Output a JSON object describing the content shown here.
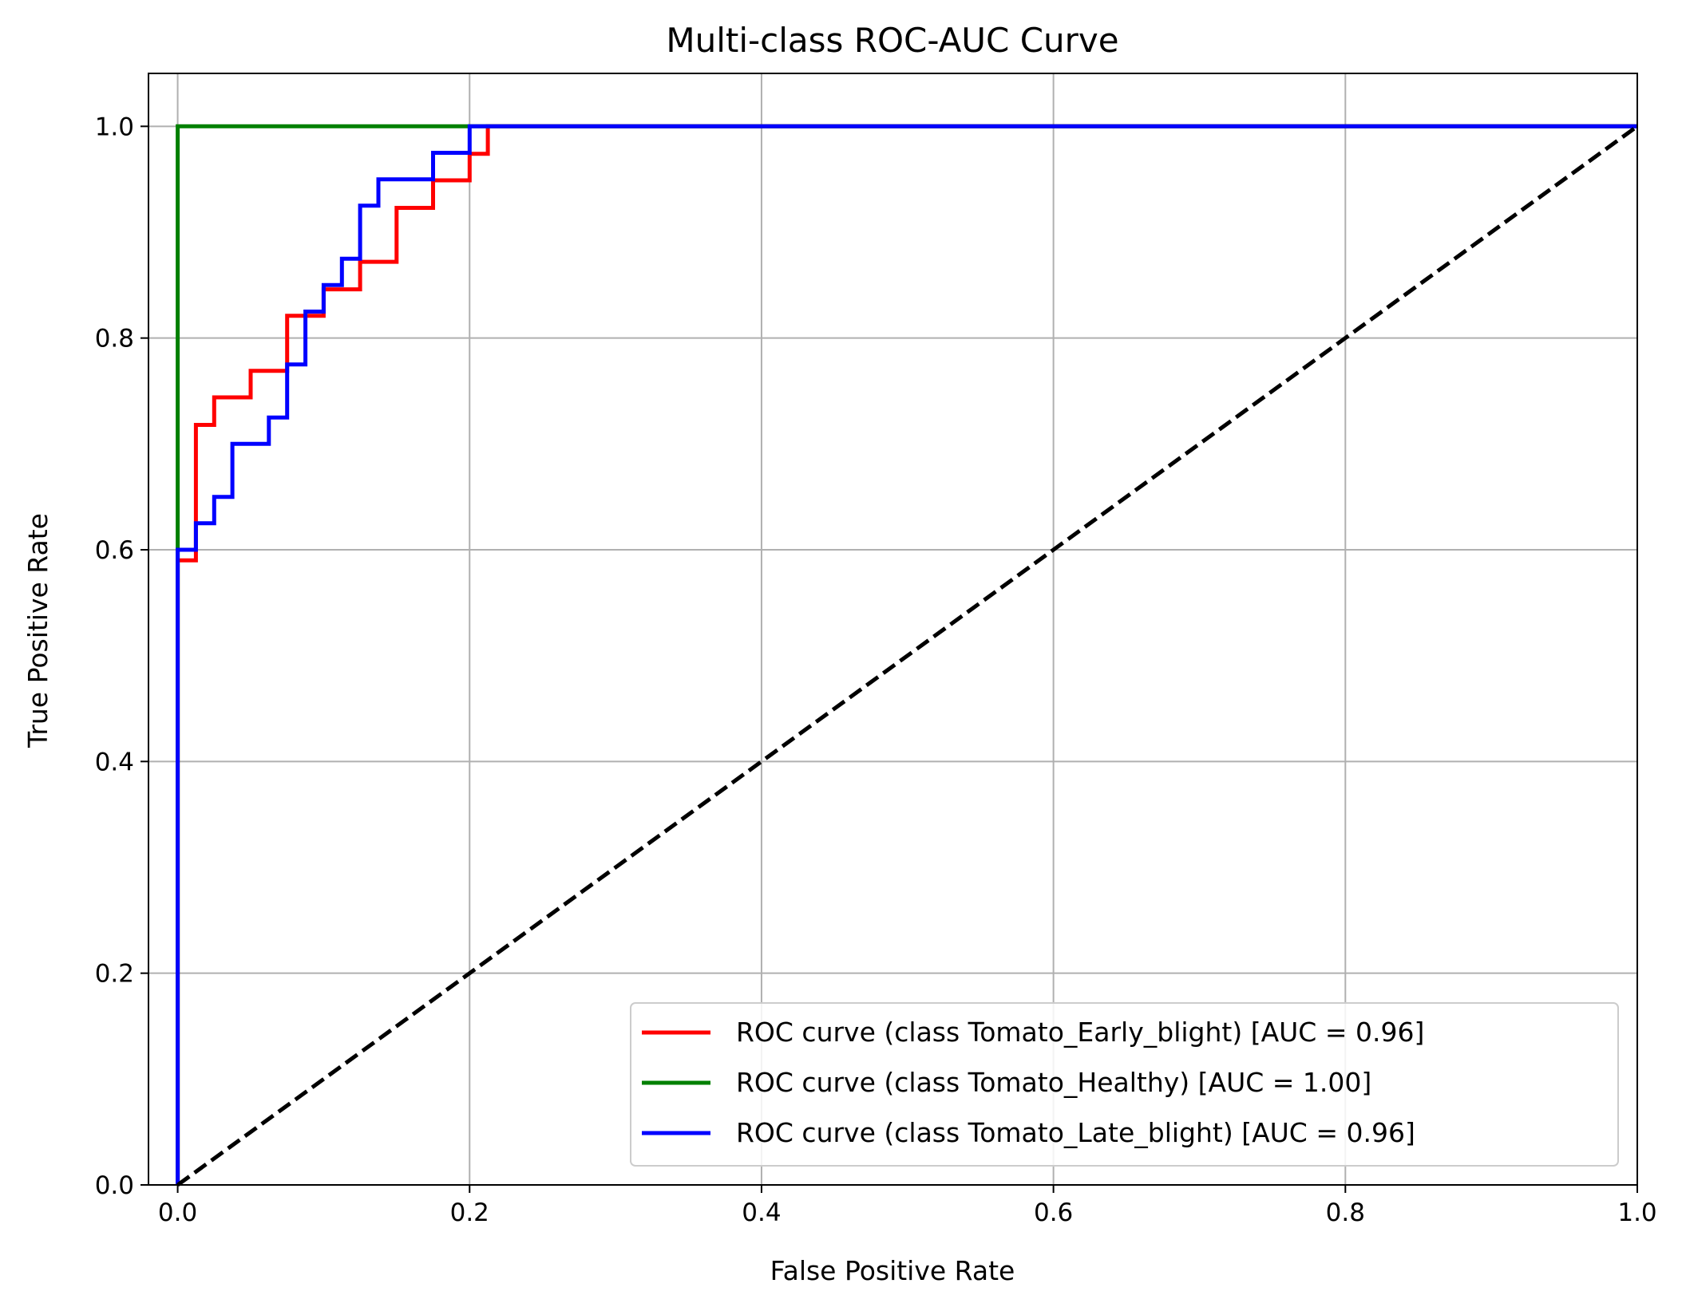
{
  "chart_data": {
    "type": "line",
    "title": "Multi-class ROC-AUC Curve",
    "xlabel": "False Positive Rate",
    "ylabel": "True Positive Rate",
    "xlim": [
      -0.02,
      1.0
    ],
    "ylim": [
      0.0,
      1.05
    ],
    "xticks": [
      0.0,
      0.2,
      0.4,
      0.6,
      0.8,
      1.0
    ],
    "yticks": [
      0.0,
      0.2,
      0.4,
      0.6,
      0.8,
      1.0
    ],
    "xtick_labels": [
      "0.0",
      "0.2",
      "0.4",
      "0.6",
      "0.8",
      "1.0"
    ],
    "ytick_labels": [
      "0.0",
      "0.2",
      "0.4",
      "0.6",
      "0.8",
      "1.0"
    ],
    "grid": true,
    "legend_position": "lower-right",
    "series": [
      {
        "name": "ROC curve (class Tomato_Early_blight) [AUC = 0.96]",
        "color": "#ff0000",
        "style": "step",
        "x": [
          0.0,
          0.0,
          0.0125,
          0.0125,
          0.025,
          0.025,
          0.05,
          0.05,
          0.075,
          0.075,
          0.1,
          0.1,
          0.125,
          0.125,
          0.15,
          0.15,
          0.175,
          0.175,
          0.2,
          0.2,
          0.2125,
          0.2125,
          1.0
        ],
        "y": [
          0.0,
          0.59,
          0.59,
          0.718,
          0.718,
          0.744,
          0.744,
          0.769,
          0.769,
          0.821,
          0.821,
          0.846,
          0.846,
          0.872,
          0.872,
          0.923,
          0.923,
          0.949,
          0.949,
          0.974,
          0.974,
          1.0,
          1.0
        ]
      },
      {
        "name": "ROC curve (class Tomato_Healthy) [AUC = 1.00]",
        "color": "#008000",
        "style": "step",
        "x": [
          0.0,
          0.0,
          1.0
        ],
        "y": [
          0.0,
          1.0,
          1.0
        ]
      },
      {
        "name": "ROC curve (class Tomato_Late_blight) [AUC = 0.96]",
        "color": "#0000ff",
        "style": "step",
        "x": [
          0.0,
          0.0,
          0.0125,
          0.0125,
          0.025,
          0.025,
          0.0375,
          0.0375,
          0.0625,
          0.0625,
          0.075,
          0.075,
          0.0875,
          0.0875,
          0.1,
          0.1,
          0.1125,
          0.1125,
          0.125,
          0.125,
          0.1375,
          0.1375,
          0.175,
          0.175,
          0.2,
          0.2,
          1.0
        ],
        "y": [
          0.0,
          0.6,
          0.6,
          0.625,
          0.625,
          0.65,
          0.65,
          0.7,
          0.7,
          0.725,
          0.725,
          0.775,
          0.775,
          0.825,
          0.825,
          0.85,
          0.85,
          0.875,
          0.875,
          0.925,
          0.925,
          0.95,
          0.95,
          0.975,
          0.975,
          1.0,
          1.0
        ]
      }
    ],
    "reference_line": {
      "color": "#000000",
      "style": "dashed",
      "x": [
        0.0,
        1.0
      ],
      "y": [
        0.0,
        1.0
      ]
    }
  }
}
